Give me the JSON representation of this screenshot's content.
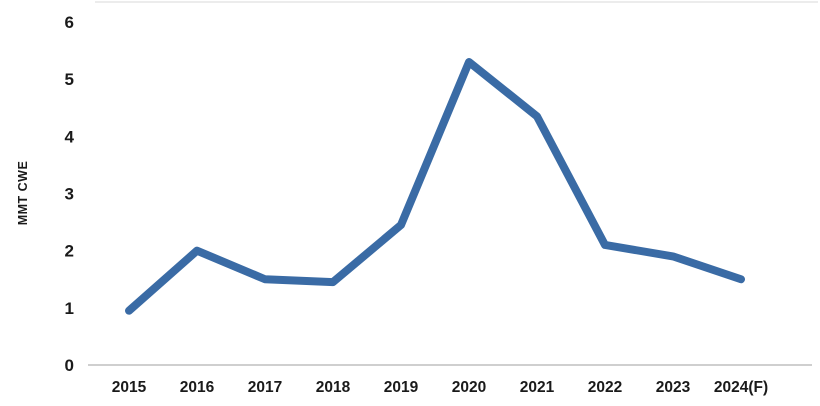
{
  "chart_data": {
    "type": "line",
    "categories": [
      "2015",
      "2016",
      "2017",
      "2018",
      "2019",
      "2020",
      "2021",
      "2022",
      "2023",
      "2024(F)"
    ],
    "values": [
      0.95,
      2.0,
      1.5,
      1.45,
      2.45,
      5.3,
      4.35,
      2.1,
      1.9,
      1.5
    ],
    "title": "",
    "xlabel": "",
    "ylabel": "MMT CWE",
    "ylim": [
      0,
      6
    ],
    "y_ticks": [
      0,
      1,
      2,
      3,
      4,
      5,
      6
    ],
    "grid": false,
    "legend": "none",
    "line_color": "#3A6BA5",
    "axis_color": "#BFBFBF",
    "top_border_color": "#D9D9D9",
    "text_color": "#1A1A1A",
    "line_width": 8
  }
}
